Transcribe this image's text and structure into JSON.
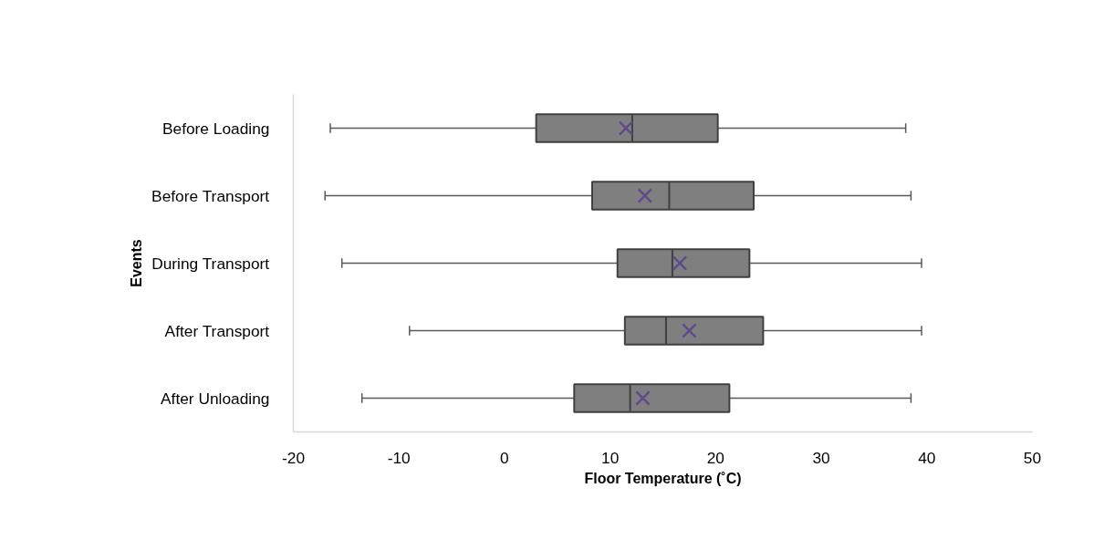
{
  "chart_data": {
    "type": "box",
    "orientation": "horizontal",
    "categories": [
      "Before Loading",
      "Before Transport",
      "During Transport",
      "After Transport",
      "After Unloading"
    ],
    "boxes": [
      {
        "low": -16.5,
        "q1": 3.0,
        "median": 12.1,
        "q3": 20.2,
        "high": 38.0,
        "mean": 11.5
      },
      {
        "low": -17.0,
        "q1": 8.3,
        "median": 15.6,
        "q3": 23.6,
        "high": 38.5,
        "mean": 13.3
      },
      {
        "low": -15.4,
        "q1": 10.7,
        "median": 15.9,
        "q3": 23.2,
        "high": 39.5,
        "mean": 16.6
      },
      {
        "low": -9.0,
        "q1": 11.4,
        "median": 15.3,
        "q3": 24.5,
        "high": 39.5,
        "mean": 17.5
      },
      {
        "low": -13.5,
        "q1": 6.6,
        "median": 11.9,
        "q3": 21.3,
        "high": 38.5,
        "mean": 13.1
      }
    ],
    "color": "#7f7f7f",
    "marker": "cross",
    "xlim": [
      -20,
      50
    ],
    "xticks": [
      -20,
      -10,
      0,
      10,
      20,
      30,
      40,
      50
    ],
    "xlabel": "Floor Temperature (˚C)",
    "ylabel": "Events",
    "grid": false
  }
}
